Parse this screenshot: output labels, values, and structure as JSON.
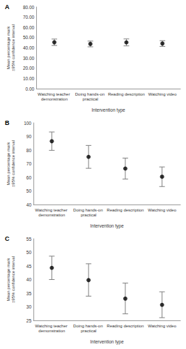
{
  "chart_data": [
    {
      "type": "scatter",
      "title": "A",
      "x_label": "Intervention type",
      "y_label": "Mean percentage mark ±95% confidence interval",
      "categories": [
        "Watching teacher demonstration",
        "Doing hands-on practical",
        "Reading description",
        "Watching video"
      ],
      "values": [
        45.4,
        43.8,
        45.3,
        44.2
      ],
      "errors": [
        [
          42.3,
          48.6
        ],
        [
          41.0,
          46.6
        ],
        [
          41.9,
          48.7
        ],
        [
          41.4,
          47.0
        ]
      ],
      "color": "#000000",
      "marker": "circle",
      "grid": false,
      "ylim": [
        0,
        80
      ],
      "yticks": [
        {
          "value": 0,
          "label": "0.00"
        },
        {
          "value": 10,
          "label": "10.00"
        },
        {
          "value": 20,
          "label": "20.00"
        },
        {
          "value": 30,
          "label": "30.00"
        },
        {
          "value": 40,
          "label": "40.00"
        },
        {
          "value": 50,
          "label": "50.00"
        },
        {
          "value": 60,
          "label": "60.00"
        },
        {
          "value": 70,
          "label": "70.00"
        },
        {
          "value": 80,
          "label": "80.00"
        }
      ]
    },
    {
      "type": "scatter",
      "title": "B",
      "x_label": "Intervention type",
      "y_label": "Mean percentage mark ±95% confidence interval",
      "categories": [
        "Watching teacher demonstration",
        "Doing hands-on practical",
        "Reading description",
        "Watching video"
      ],
      "values": [
        86.5,
        75.0,
        66.4,
        60.4
      ],
      "errors": [
        [
          79.8,
          93.3
        ],
        [
          66.6,
          83.4
        ],
        [
          58.7,
          74.1
        ],
        [
          53.2,
          67.6
        ]
      ],
      "color": "#000000",
      "marker": "circle",
      "grid": false,
      "ylim": [
        40,
        100
      ],
      "yticks": [
        40,
        50,
        60,
        70,
        80,
        90,
        100
      ]
    },
    {
      "type": "scatter",
      "title": "C",
      "x_label": "Intervention type",
      "y_label": "Mean percentage mark ±95% confidence interval",
      "categories": [
        "Watching teacher demonstration",
        "Doing hands-on practical",
        "Reading description",
        "Watching video"
      ],
      "values": [
        44.3,
        39.8,
        33.0,
        30.7
      ],
      "errors": [
        [
          40.0,
          48.6
        ],
        [
          33.9,
          45.8
        ],
        [
          27.4,
          38.7
        ],
        [
          26.0,
          35.5
        ]
      ],
      "color": "#000000",
      "marker": "circle",
      "grid": false,
      "ylim": [
        25,
        55
      ],
      "yticks": [
        25,
        30,
        35,
        40,
        45,
        50,
        55
      ]
    }
  ]
}
